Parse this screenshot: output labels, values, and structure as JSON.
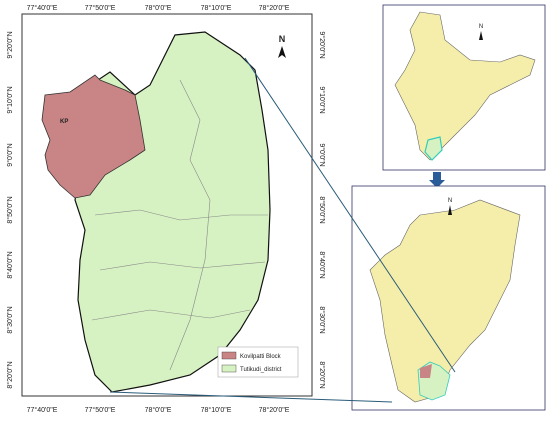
{
  "map": {
    "lon_labels": [
      "77°40'0\"E",
      "77°50'0\"E",
      "78°0'0\"E",
      "78°10'0\"E",
      "78°20'0\"E"
    ],
    "lat_labels": [
      "9°20'0\"N",
      "9°10'0\"N",
      "9°0'0\"N",
      "8°50'0\"N",
      "8°40'0\"N",
      "8°30'0\"N",
      "8°20'0\"N"
    ],
    "north_labels": [
      "N",
      "N",
      "N"
    ],
    "block_label": "KP",
    "legend": [
      "Kovilpatti Block",
      "Tutikudi_district"
    ]
  }
}
